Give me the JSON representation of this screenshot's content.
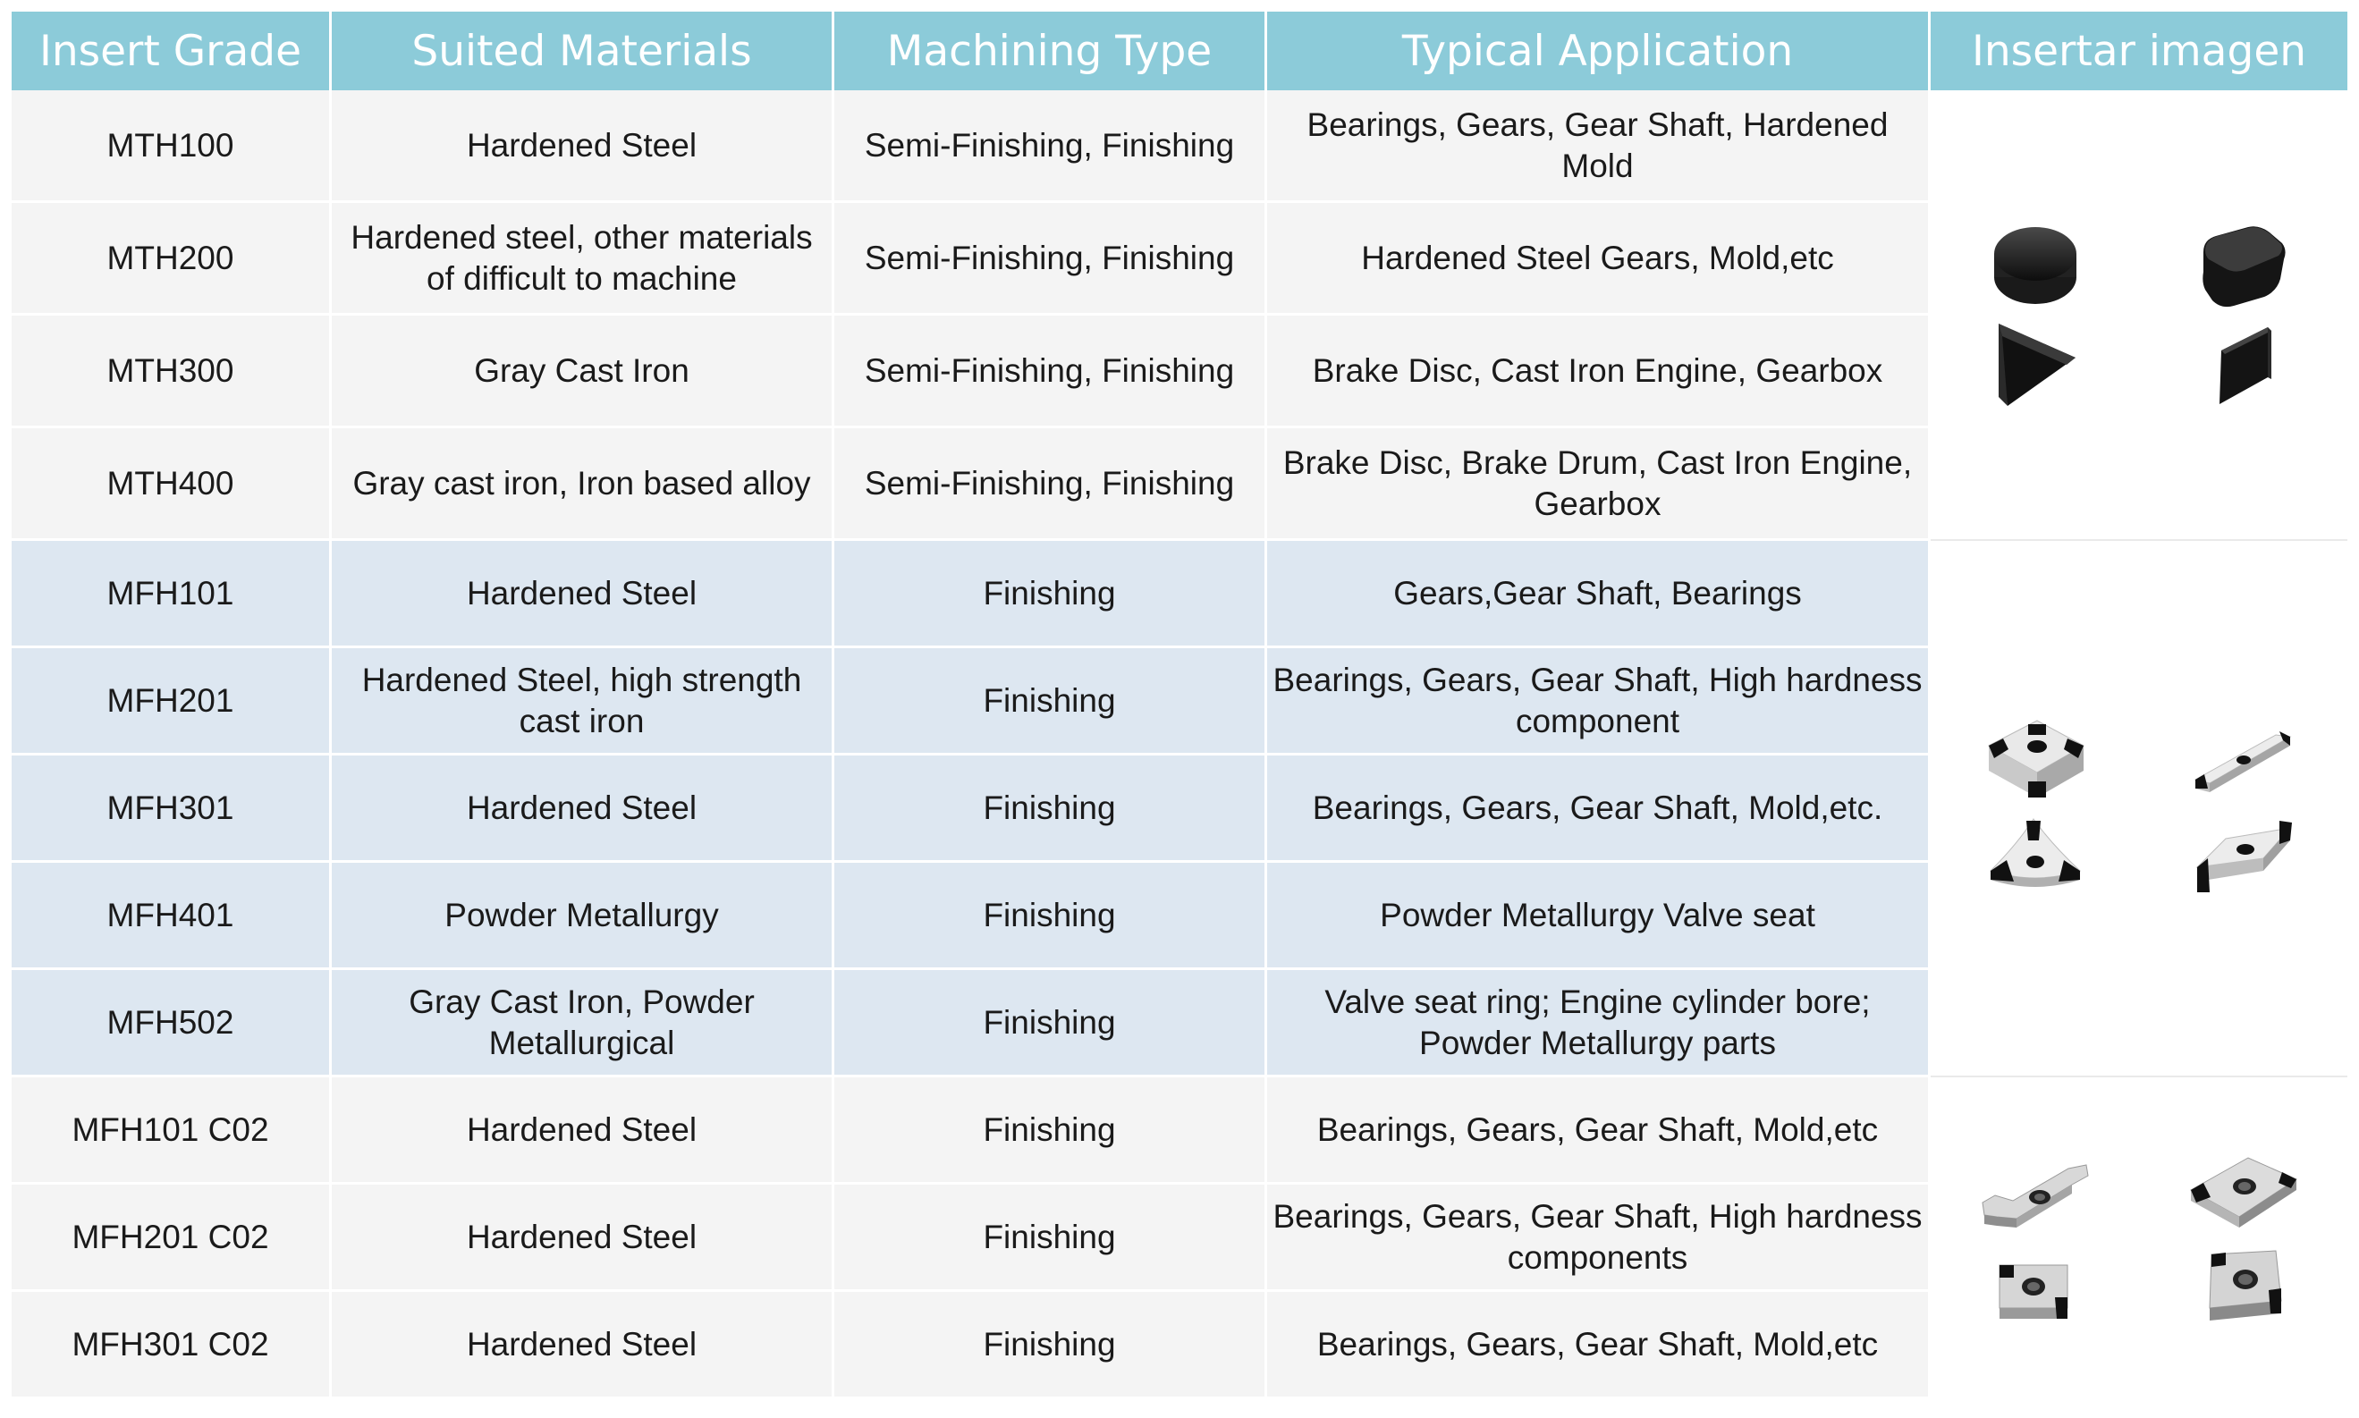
{
  "columns": [
    "Insert Grade",
    "Suited Materials",
    "Machining Type",
    "Typical Application",
    "Insertar imagen"
  ],
  "rows": [
    {
      "grade": "MTH100",
      "materials": "Hardened Steel",
      "machining": "Semi-Finishing, Finishing",
      "application": "Bearings, Gears, Gear Shaft, Hardened Mold"
    },
    {
      "grade": "MTH200",
      "materials": "Hardened steel, other materials of difficult to machine",
      "machining": "Semi-Finishing, Finishing",
      "application": "Hardened Steel Gears, Mold,etc"
    },
    {
      "grade": "MTH300",
      "materials": "Gray Cast Iron",
      "machining": "Semi-Finishing, Finishing",
      "application": "Brake Disc, Cast Iron Engine, Gearbox"
    },
    {
      "grade": "MTH400",
      "materials": "Gray cast iron, Iron based alloy",
      "machining": "Semi-Finishing, Finishing",
      "application": "Brake Disc, Brake Drum, Cast Iron Engine, Gearbox"
    },
    {
      "grade": "MFH101",
      "materials": "Hardened Steel",
      "machining": "Finishing",
      "application": "Gears,Gear Shaft, Bearings"
    },
    {
      "grade": "MFH201",
      "materials": "Hardened Steel, high strength cast iron",
      "machining": "Finishing",
      "application": "Bearings, Gears, Gear Shaft, High hardness component"
    },
    {
      "grade": "MFH301",
      "materials": "Hardened Steel",
      "machining": "Finishing",
      "application": "Bearings, Gears, Gear Shaft, Mold,etc."
    },
    {
      "grade": "MFH401",
      "materials": "Powder Metallurgy",
      "machining": "Finishing",
      "application": "Powder Metallurgy Valve seat"
    },
    {
      "grade": "MFH502",
      "materials": "Gray Cast Iron, Powder Metallurgical",
      "machining": "Finishing",
      "application": "Valve seat ring; Engine cylinder bore; Powder Metallurgy parts"
    },
    {
      "grade": "MFH101 C02",
      "materials": "Hardened Steel",
      "machining": "Finishing",
      "application": "Bearings, Gears, Gear Shaft, Mold,etc"
    },
    {
      "grade": "MFH201 C02",
      "materials": "Hardened Steel",
      "machining": "Finishing",
      "application": "Bearings, Gears, Gear Shaft, High hardness components"
    },
    {
      "grade": "MFH301 C02",
      "materials": "Hardened Steel",
      "machining": "Finishing",
      "application": "Bearings, Gears, Gear Shaft, Mold,etc"
    }
  ],
  "images": {
    "mth_group": [
      "round-insert-icon",
      "square-insert-icon",
      "triangle-insert-icon",
      "rhombic-insert-icon"
    ],
    "mfh_group": [
      "square-tipped-insert-icon",
      "diamond-tipped-insert-icon",
      "trigon-tipped-insert-icon",
      "rhombic-tipped-insert-icon"
    ],
    "c02_group": [
      "grooving-insert-icon",
      "rhombic-c02-insert-icon",
      "square-c02-insert-icon",
      "square-c02-angled-insert-icon"
    ]
  },
  "colors": {
    "header_bg": "#8ccbd9",
    "header_text": "#ffffff",
    "mth_row_bg": "#f4f4f4",
    "mfh_row_bg": "#dde7f1",
    "c02_row_bg": "#f4f4f4"
  }
}
